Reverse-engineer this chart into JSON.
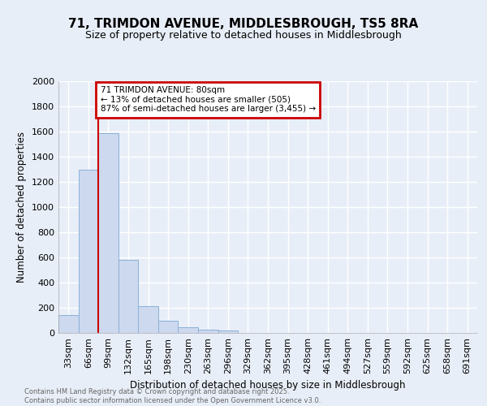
{
  "title1": "71, TRIMDON AVENUE, MIDDLESBROUGH, TS5 8RA",
  "title2": "Size of property relative to detached houses in Middlesbrough",
  "xlabel": "Distribution of detached houses by size in Middlesbrough",
  "ylabel": "Number of detached properties",
  "categories": [
    "33sqm",
    "66sqm",
    "99sqm",
    "132sqm",
    "165sqm",
    "198sqm",
    "230sqm",
    "263sqm",
    "296sqm",
    "329sqm",
    "362sqm",
    "395sqm",
    "428sqm",
    "461sqm",
    "494sqm",
    "527sqm",
    "559sqm",
    "592sqm",
    "625sqm",
    "658sqm",
    "691sqm"
  ],
  "values": [
    140,
    1300,
    1590,
    580,
    215,
    100,
    48,
    27,
    20,
    0,
    0,
    0,
    0,
    0,
    0,
    0,
    0,
    0,
    0,
    0,
    0
  ],
  "bar_color": "#cdd9ee",
  "bar_edge_color": "#8ab0d8",
  "vline_x": 1.5,
  "vline_color": "#cc0000",
  "ann_title": "71 TRIMDON AVENUE: 80sqm",
  "ann_line1": "← 13% of detached houses are smaller (505)",
  "ann_line2": "87% of semi-detached houses are larger (3,455) →",
  "annotation_box_color": "#ffffff",
  "annotation_box_edge": "#cc0000",
  "ylim": [
    0,
    2000
  ],
  "yticks": [
    0,
    200,
    400,
    600,
    800,
    1000,
    1200,
    1400,
    1600,
    1800,
    2000
  ],
  "footer1": "Contains HM Land Registry data © Crown copyright and database right 2025.",
  "footer2": "Contains public sector information licensed under the Open Government Licence v3.0.",
  "bg_color": "#e8eef8",
  "plot_bg_color": "#e8eef8",
  "grid_color": "#ffffff"
}
